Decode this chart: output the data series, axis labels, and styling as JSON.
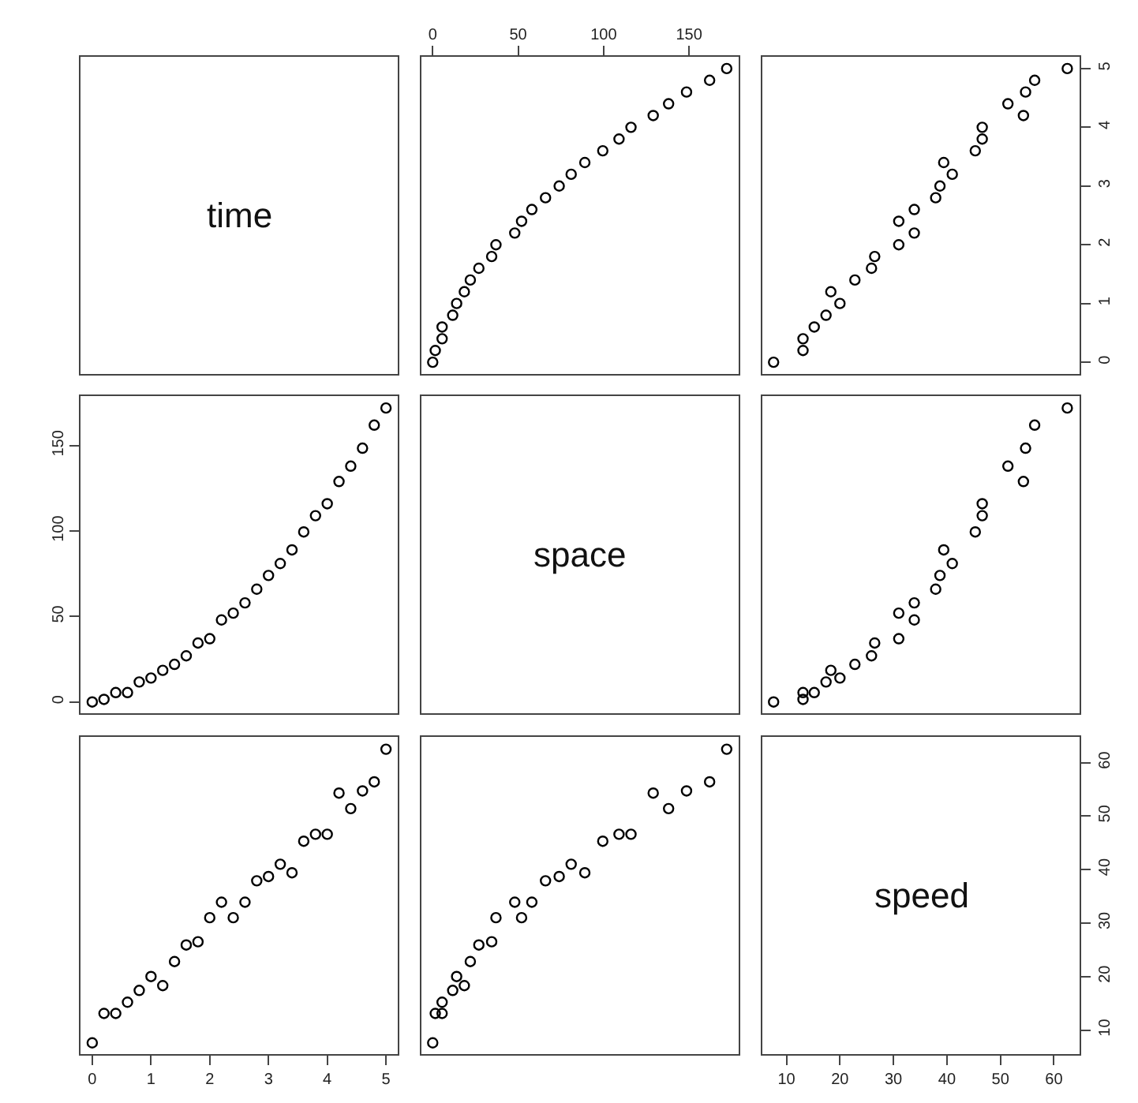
{
  "chart_data": [
    {
      "type": "other",
      "title": "time"
    },
    {
      "type": "scatter",
      "color": "#000000",
      "marker": "circle",
      "tick_labels": "x",
      "xlim": [
        -6.6,
        179
      ],
      "ylim": [
        -0.2,
        5.2
      ],
      "xticks": [
        0,
        50,
        100,
        150
      ],
      "x": [
        0,
        1.5,
        5.5,
        5.5,
        11.7,
        14,
        18.5,
        22,
        27,
        34.5,
        37,
        48,
        52,
        58,
        66,
        74,
        81,
        89,
        99.5,
        109,
        116,
        129,
        138,
        148.5,
        162,
        172
      ],
      "values": [
        0,
        0.2,
        0.4,
        0.6,
        0.8,
        1,
        1.2,
        1.4,
        1.6,
        1.8,
        2,
        2.2,
        2.4,
        2.6,
        2.8,
        3,
        3.2,
        3.4,
        3.6,
        3.8,
        4,
        4.2,
        4.4,
        4.6,
        4.8,
        5
      ]
    },
    {
      "type": "scatter",
      "color": "#000000",
      "marker": "circle",
      "tick_labels": "y",
      "xlim": [
        5.5,
        64.8
      ],
      "ylim": [
        -0.2,
        5.2
      ],
      "yticks": [
        0,
        1,
        2,
        3,
        4,
        5
      ],
      "x": [
        7.6,
        13.1,
        13.1,
        15.2,
        17.4,
        20,
        18.3,
        22.8,
        25.9,
        26.5,
        31,
        33.9,
        31,
        33.9,
        37.9,
        38.7,
        41,
        39.4,
        45.3,
        46.6,
        46.6,
        54.3,
        51.4,
        54.7,
        56.4,
        62.5
      ],
      "values": [
        0,
        0.2,
        0.4,
        0.6,
        0.8,
        1,
        1.2,
        1.4,
        1.6,
        1.8,
        2,
        2.2,
        2.4,
        2.6,
        2.8,
        3,
        3.2,
        3.4,
        3.6,
        3.8,
        4,
        4.2,
        4.4,
        4.6,
        4.8,
        5
      ]
    },
    {
      "type": "scatter",
      "color": "#000000",
      "marker": "circle",
      "tick_labels": "y",
      "xlim": [
        -0.2,
        5.2
      ],
      "ylim": [
        -6.6,
        179
      ],
      "yticks": [
        0,
        50,
        100,
        150
      ],
      "x": [
        0,
        0.2,
        0.4,
        0.6,
        0.8,
        1,
        1.2,
        1.4,
        1.6,
        1.8,
        2,
        2.2,
        2.4,
        2.6,
        2.8,
        3,
        3.2,
        3.4,
        3.6,
        3.8,
        4,
        4.2,
        4.4,
        4.6,
        4.8,
        5
      ],
      "values": [
        0,
        1.5,
        5.5,
        5.5,
        11.7,
        14,
        18.5,
        22,
        27,
        34.5,
        37,
        48,
        52,
        58,
        66,
        74,
        81,
        89,
        99.5,
        109,
        116,
        129,
        138,
        148.5,
        162,
        172
      ]
    },
    {
      "type": "other",
      "title": "space"
    },
    {
      "type": "scatter",
      "color": "#000000",
      "marker": "circle",
      "tick_labels": false,
      "xlim": [
        5.5,
        64.8
      ],
      "ylim": [
        -6.6,
        179
      ],
      "x": [
        7.6,
        13.1,
        13.1,
        15.2,
        17.4,
        20,
        18.3,
        22.8,
        25.9,
        26.5,
        31,
        33.9,
        31,
        33.9,
        37.9,
        38.7,
        41,
        39.4,
        45.3,
        46.6,
        46.6,
        54.3,
        51.4,
        54.7,
        56.4,
        62.5
      ],
      "values": [
        0,
        1.5,
        5.5,
        5.5,
        11.7,
        14,
        18.5,
        22,
        27,
        34.5,
        37,
        48,
        52,
        58,
        66,
        74,
        81,
        89,
        99.5,
        109,
        116,
        129,
        138,
        148.5,
        162,
        172
      ]
    },
    {
      "type": "scatter",
      "color": "#000000",
      "marker": "circle",
      "tick_labels": "x",
      "xlim": [
        -0.2,
        5.2
      ],
      "ylim": [
        5.5,
        64.8
      ],
      "xticks": [
        0,
        1,
        2,
        3,
        4,
        5
      ],
      "x": [
        0,
        0.2,
        0.4,
        0.6,
        0.8,
        1,
        1.2,
        1.4,
        1.6,
        1.8,
        2,
        2.2,
        2.4,
        2.6,
        2.8,
        3,
        3.2,
        3.4,
        3.6,
        3.8,
        4,
        4.2,
        4.4,
        4.6,
        4.8,
        5
      ],
      "values": [
        7.6,
        13.1,
        13.1,
        15.2,
        17.4,
        20,
        18.3,
        22.8,
        25.9,
        26.5,
        31,
        33.9,
        31,
        33.9,
        37.9,
        38.7,
        41,
        39.4,
        45.3,
        46.6,
        46.6,
        54.3,
        51.4,
        54.7,
        56.4,
        62.5
      ]
    },
    {
      "type": "scatter",
      "color": "#000000",
      "marker": "circle",
      "tick_labels": false,
      "xlim": [
        -6.6,
        179
      ],
      "ylim": [
        5.5,
        64.8
      ],
      "x": [
        0,
        1.5,
        5.5,
        5.5,
        11.7,
        14,
        18.5,
        22,
        27,
        34.5,
        37,
        48,
        52,
        58,
        66,
        74,
        81,
        89,
        99.5,
        109,
        116,
        129,
        138,
        148.5,
        162,
        172
      ],
      "values": [
        7.6,
        13.1,
        13.1,
        15.2,
        17.4,
        20,
        18.3,
        22.8,
        25.9,
        26.5,
        31,
        33.9,
        31,
        33.9,
        37.9,
        38.7,
        41,
        39.4,
        45.3,
        46.6,
        46.6,
        54.3,
        51.4,
        54.7,
        56.4,
        62.5
      ]
    },
    {
      "type": "scatter",
      "title": "speed",
      "xlim": [
        5.5,
        64.8
      ],
      "ylim": [
        5.5,
        64.8
      ],
      "xticks": [
        10,
        20,
        30,
        40,
        50,
        60
      ],
      "yticks": [
        10,
        20,
        30,
        40,
        50,
        60
      ]
    }
  ]
}
